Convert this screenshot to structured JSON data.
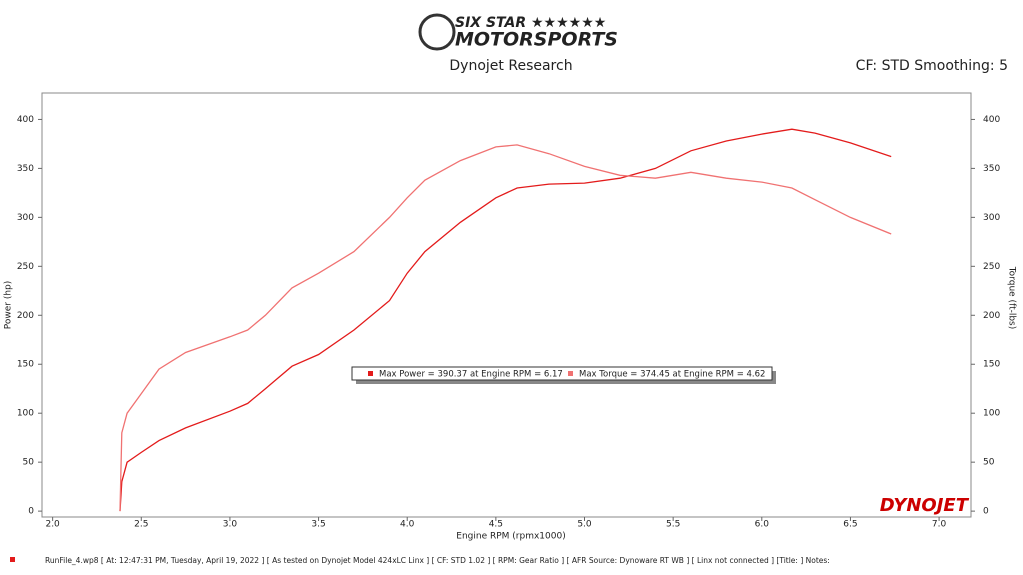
{
  "chart_data": {
    "type": "line",
    "logo_line1": "SIX STAR ★★★★★★",
    "logo_line2": "MOTORSPORTS",
    "title": "Dynojet Research",
    "subtitle": "CF: STD Smoothing: 5",
    "x_label": "Engine RPM (rpmx1000)",
    "y_label": "Power (hp)",
    "y2_label": "Torque (ft-lbs)",
    "brand": "DYNOJET",
    "footer": "RunFile_4.wp8 [ At: 12:47:31 PM, Tuesday, April 19, 2022 ] [ As tested on Dynojet Model 424xLC Linx ] [ CF: STD 1.02 ] [ RPM: Gear Ratio ] [ AFR Source: Dynoware RT WB ] [ Linx not connected ] [Title: ]  Notes:",
    "x": [
      2.38,
      2.39,
      2.42,
      2.5,
      2.6,
      2.75,
      3.0,
      3.1,
      3.2,
      3.35,
      3.5,
      3.7,
      3.9,
      4.0,
      4.1,
      4.3,
      4.5,
      4.62,
      4.8,
      5.0,
      5.2,
      5.4,
      5.6,
      5.8,
      6.0,
      6.17,
      6.3,
      6.5,
      6.73
    ],
    "series": [
      {
        "name": "Max Power = 390.37 at Engine RPM = 6.17",
        "color": "#e31b1b",
        "values": [
          0,
          30,
          50,
          60,
          72,
          85,
          102,
          110,
          125,
          148,
          160,
          185,
          215,
          243,
          265,
          295,
          320,
          330,
          334,
          335,
          340,
          350,
          368,
          378,
          385,
          390,
          386,
          376,
          362
        ]
      },
      {
        "name": "Max Torque = 374.45 at Engine RPM = 4.62",
        "color": "#f07272",
        "axis": "y2",
        "values": [
          0,
          80,
          100,
          120,
          145,
          162,
          178,
          185,
          200,
          228,
          243,
          265,
          300,
          320,
          338,
          358,
          372,
          374,
          365,
          352,
          343,
          340,
          346,
          340,
          336,
          330,
          318,
          300,
          283
        ]
      }
    ],
    "xlim": [
      1.94,
      7.18
    ],
    "xticks": [
      {
        "value": 2,
        "label": "2.0"
      },
      2.5,
      {
        "value": 3,
        "label": "3.0"
      },
      3.5,
      {
        "value": 4,
        "label": "4.0"
      },
      4.5,
      {
        "value": 5,
        "label": "5.0"
      },
      5.5,
      {
        "value": 6,
        "label": "6.0"
      },
      6.5,
      {
        "value": 7,
        "label": "7.0"
      }
    ],
    "ylim": [
      -6,
      427
    ],
    "yticks": [
      0,
      50,
      100,
      150,
      200,
      250,
      300,
      350,
      400
    ],
    "y2lim": [
      -6,
      427
    ],
    "y2ticks": [
      0,
      50,
      100,
      150,
      200,
      250,
      300,
      350,
      400
    ],
    "grid": false
  }
}
